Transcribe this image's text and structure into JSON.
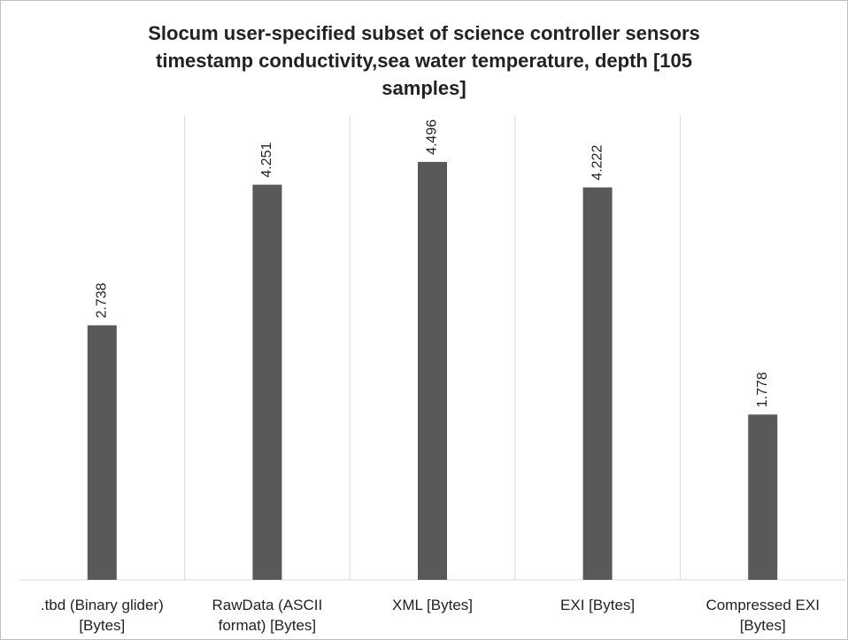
{
  "chart_data": {
    "type": "bar",
    "title": "Slocum user-specified subset of science controller sensors timestamp conductivity,sea water temperature, depth [105 samples]",
    "categories": [
      ".tbd (Binary glider) [Bytes]",
      "RawData (ASCII format) [Bytes]",
      "XML [Bytes]",
      "EXI [Bytes]",
      "Compressed EXI [Bytes]"
    ],
    "values": [
      2.738,
      4.251,
      4.496,
      4.222,
      1.778
    ],
    "color": "#595959",
    "ylim": [
      0,
      5
    ]
  }
}
